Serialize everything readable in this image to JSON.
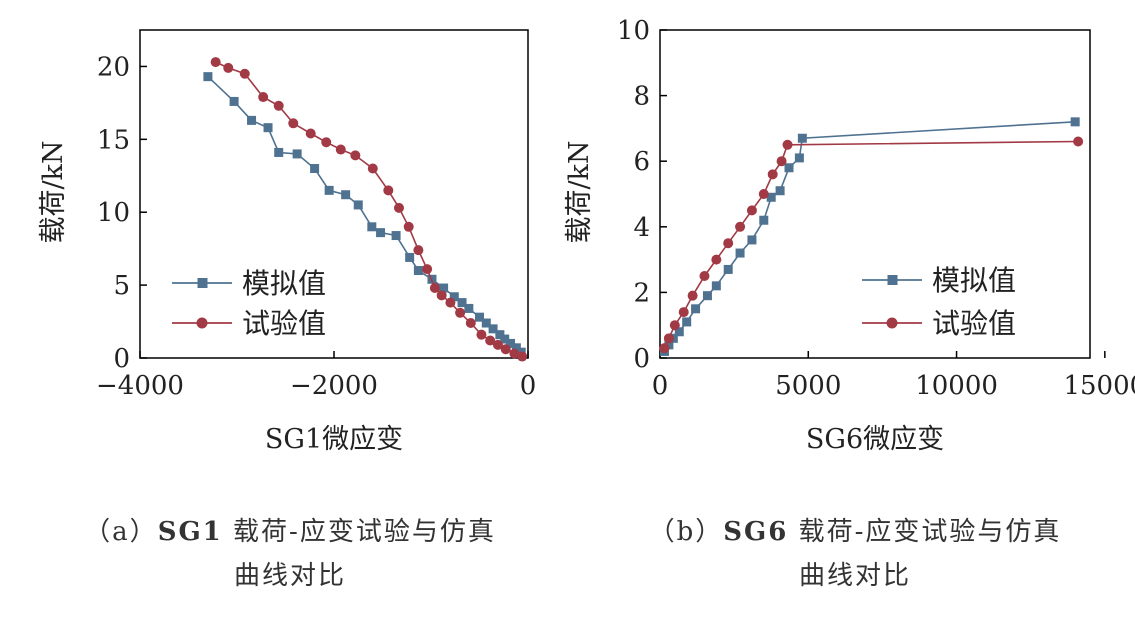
{
  "charts": [
    {
      "caption_prefix": "（a）",
      "caption_bold": "SG1",
      "caption_rest": " 载荷-应变试验与仿真",
      "caption_line2": "曲线对比"
    },
    {
      "caption_prefix": "（b）",
      "caption_bold": "SG6",
      "caption_rest": " 载荷-应变试验与仿真",
      "caption_line2": "曲线对比"
    }
  ],
  "colors": {
    "sim": "#4f7291",
    "test": "#a23a45",
    "axis": "#000000"
  },
  "chart_data": [
    {
      "type": "line",
      "title": "",
      "xlabel": "SG1微应变",
      "ylabel": "载荷/kN",
      "xlim": [
        -4000,
        0
      ],
      "ylim": [
        0,
        22.5
      ],
      "xticks": [
        -4000,
        -2000,
        0
      ],
      "xtick_labels": [
        "−4000",
        "−2000",
        "0"
      ],
      "yticks": [
        0,
        5,
        10,
        15,
        20
      ],
      "ytick_labels": [
        "0",
        "5",
        "10",
        "15",
        "20"
      ],
      "legend_position": "lower-left",
      "series": [
        {
          "name": "模拟值",
          "marker": "square",
          "x": [
            -3300,
            -3030,
            -2850,
            -2680,
            -2570,
            -2380,
            -2200,
            -2050,
            -1880,
            -1750,
            -1610,
            -1520,
            -1360,
            -1220,
            -1130,
            -990,
            -870,
            -760,
            -680,
            -610,
            -500,
            -430,
            -360,
            -290,
            -240,
            -180,
            -120,
            -70
          ],
          "y": [
            19.3,
            17.6,
            16.3,
            15.8,
            14.1,
            14.0,
            13.0,
            11.5,
            11.2,
            10.5,
            9.0,
            8.6,
            8.4,
            6.9,
            6.0,
            5.4,
            4.8,
            4.2,
            3.8,
            3.4,
            2.8,
            2.4,
            2.0,
            1.6,
            1.3,
            1.0,
            0.7,
            0.4
          ]
        },
        {
          "name": "试验值",
          "marker": "circle",
          "x": [
            -3220,
            -3090,
            -2920,
            -2730,
            -2570,
            -2420,
            -2240,
            -2080,
            -1930,
            -1780,
            -1600,
            -1440,
            -1330,
            -1230,
            -1130,
            -1040,
            -960,
            -890,
            -800,
            -700,
            -590,
            -480,
            -390,
            -310,
            -230,
            -140,
            -60
          ],
          "y": [
            20.3,
            19.9,
            19.5,
            17.9,
            17.3,
            16.1,
            15.4,
            14.8,
            14.3,
            13.9,
            13.0,
            11.5,
            10.3,
            9.0,
            7.4,
            6.1,
            4.8,
            4.3,
            3.8,
            3.1,
            2.4,
            1.6,
            1.2,
            0.9,
            0.6,
            0.3,
            0.1
          ]
        }
      ]
    },
    {
      "type": "line",
      "title": "",
      "xlabel": "SG6微应变",
      "ylabel": "载荷/kN",
      "xlim": [
        0,
        14500
      ],
      "ylim": [
        0,
        10
      ],
      "xticks": [
        0,
        5000,
        10000,
        15000
      ],
      "xtick_labels": [
        "0",
        "5000",
        "10000",
        "15000"
      ],
      "yticks": [
        0,
        2,
        4,
        6,
        8,
        10
      ],
      "ytick_labels": [
        "0",
        "2",
        "4",
        "6",
        "8",
        "10"
      ],
      "legend_position": "lower-right",
      "series": [
        {
          "name": "模拟值",
          "marker": "square",
          "x": [
            150,
            300,
            450,
            650,
            900,
            1200,
            1600,
            1900,
            2300,
            2700,
            3100,
            3500,
            3750,
            4050,
            4350,
            4700,
            4800,
            14000
          ],
          "y": [
            0.2,
            0.4,
            0.6,
            0.8,
            1.1,
            1.5,
            1.9,
            2.2,
            2.7,
            3.2,
            3.6,
            4.2,
            4.9,
            5.1,
            5.8,
            6.1,
            6.7,
            7.2
          ]
        },
        {
          "name": "试验值",
          "marker": "circle",
          "x": [
            150,
            300,
            500,
            800,
            1100,
            1500,
            1900,
            2300,
            2700,
            3100,
            3500,
            3800,
            4100,
            4300,
            14100
          ],
          "y": [
            0.3,
            0.6,
            1.0,
            1.4,
            1.9,
            2.5,
            3.0,
            3.5,
            4.0,
            4.5,
            5.0,
            5.6,
            6.0,
            6.5,
            6.6
          ]
        }
      ]
    }
  ]
}
